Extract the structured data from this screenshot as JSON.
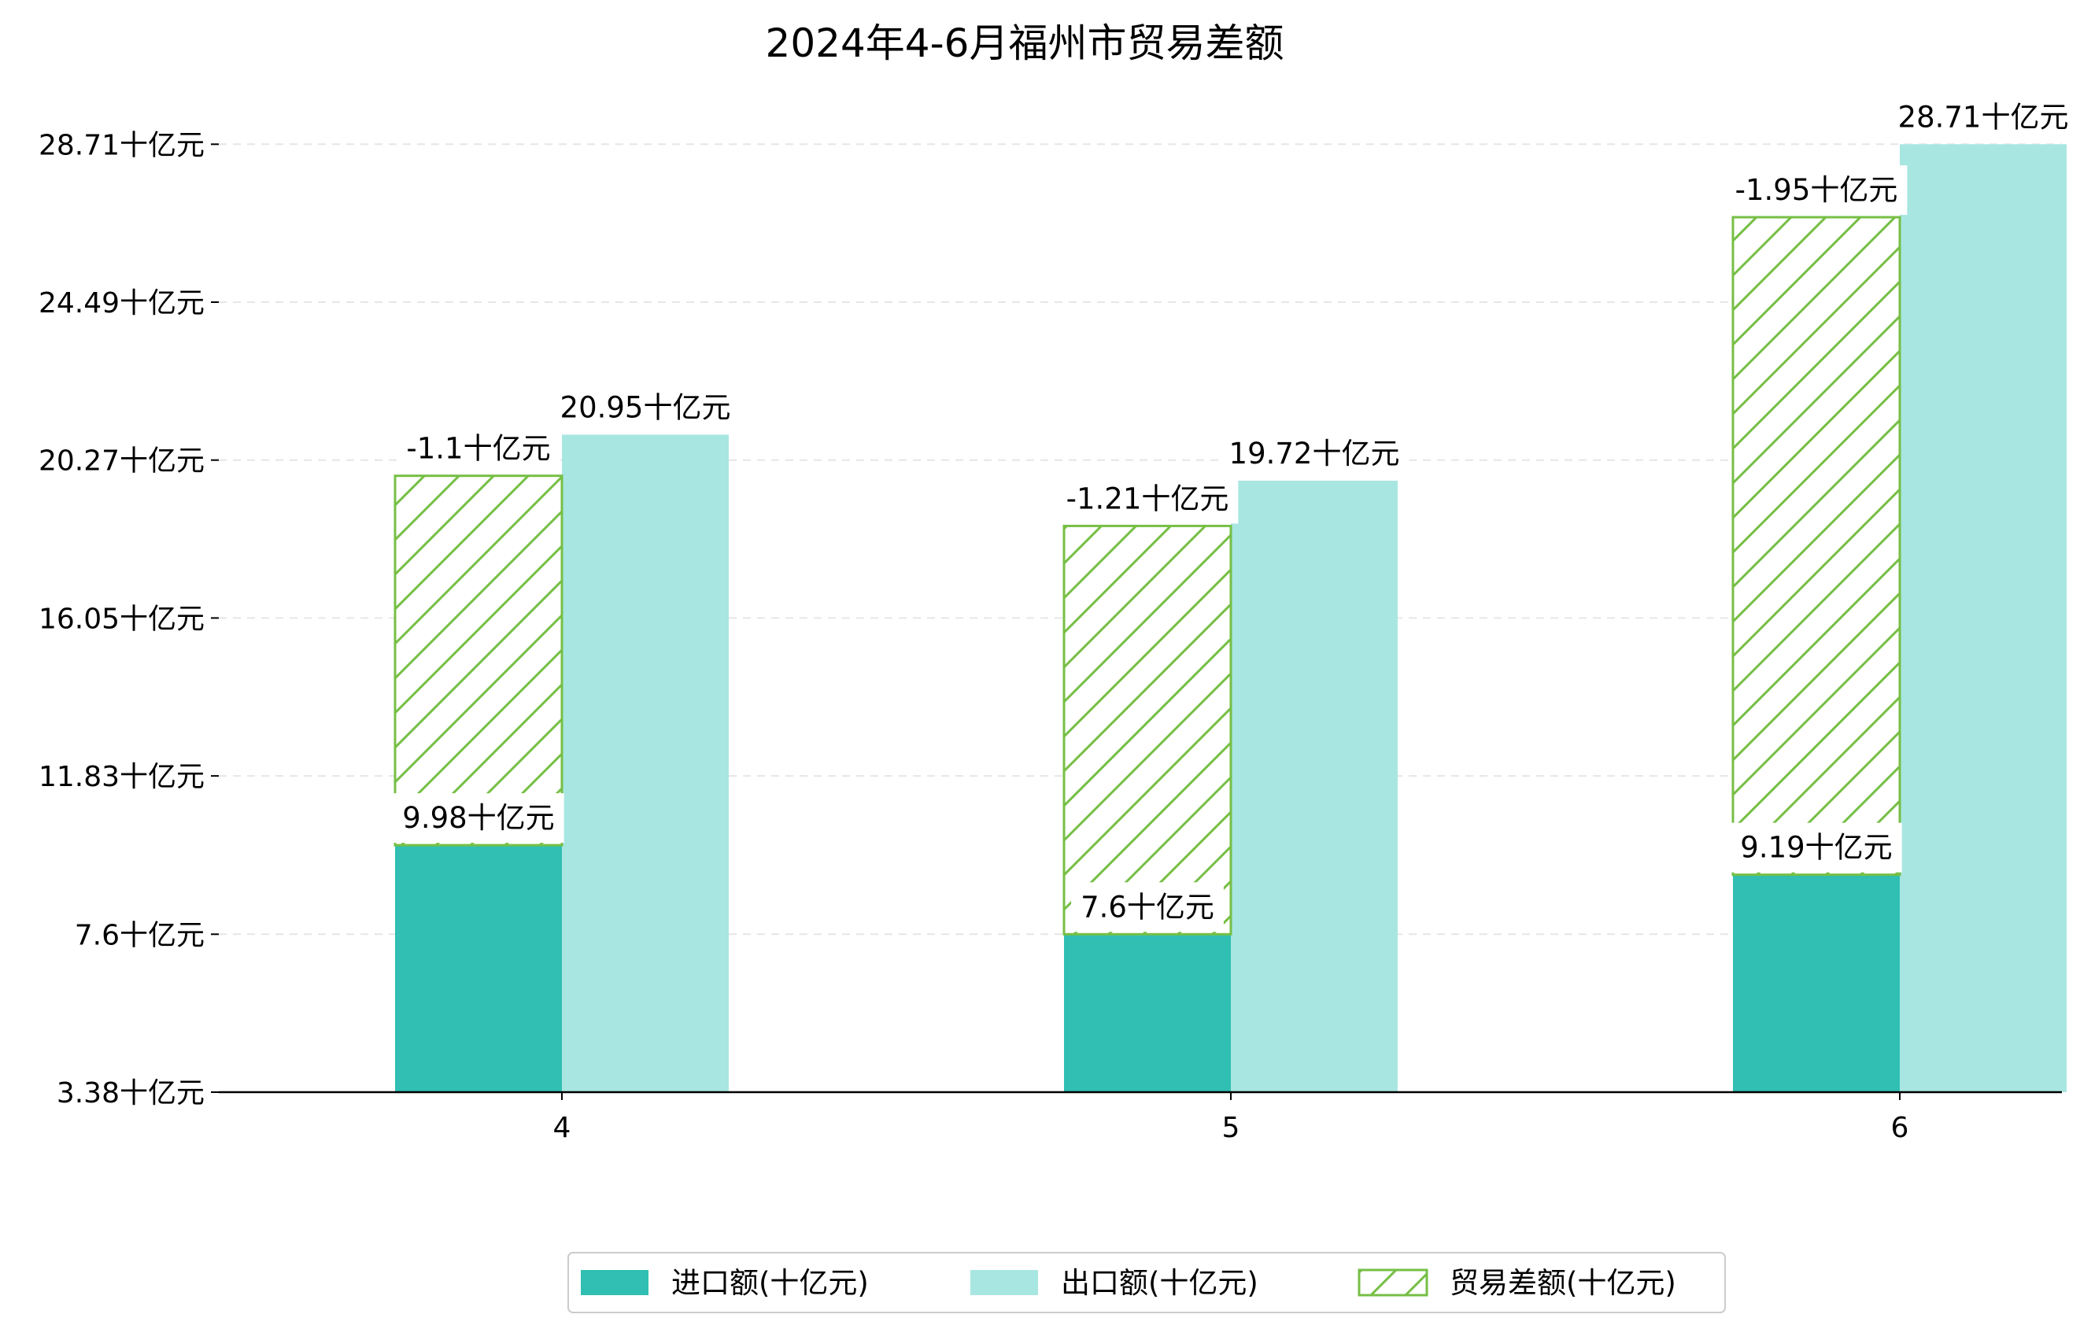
{
  "chart_data": {
    "type": "bar",
    "title": "2024年4-6月福州市贸易差额",
    "categories": [
      "4",
      "5",
      "6"
    ],
    "unit_suffix": "十亿元",
    "series": [
      {
        "name": "进口额(十亿元)",
        "values": [
          9.98,
          7.6,
          9.19
        ],
        "color": "#30bfb2"
      },
      {
        "name": "出口额(十亿元)",
        "values": [
          20.95,
          19.72,
          28.71
        ],
        "color": "#a8e6e1"
      },
      {
        "name": "贸易差额(十亿元)",
        "values": [
          -1.1,
          -1.21,
          -1.95
        ],
        "color": "#76bf45",
        "pattern": "hatch"
      }
    ],
    "data_labels": {
      "imports": [
        "9.98十亿元",
        "7.6十亿元",
        "9.19十亿元"
      ],
      "exports": [
        "20.95十亿元",
        "19.72十亿元",
        "28.71十亿元"
      ],
      "balance": [
        "-1.1十亿元",
        "-1.21十亿元",
        "-1.95十亿元"
      ]
    },
    "yticks": [
      "3.38十亿元",
      "7.6十亿元",
      "11.83十亿元",
      "16.05十亿元",
      "20.27十亿元",
      "24.49十亿元",
      "28.71十亿元"
    ],
    "ytick_values": [
      3.38,
      7.6,
      11.83,
      16.05,
      20.27,
      24.49,
      28.71
    ],
    "ylim": [
      3.38,
      29.2
    ],
    "grid": "horizontal-dashed",
    "legend_position": "bottom-center"
  }
}
